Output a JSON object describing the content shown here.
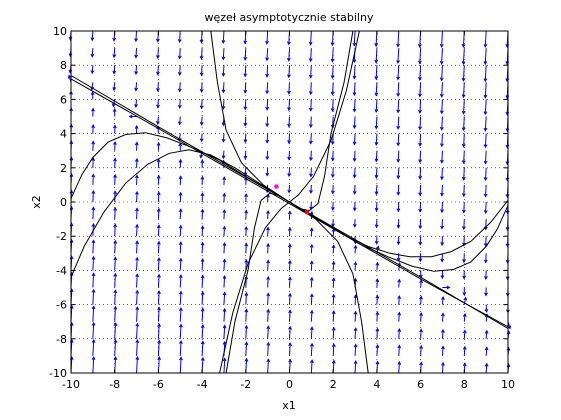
{
  "chart_data": {
    "type": "vector-field",
    "title": "węzeł asymptotycznie stabilny",
    "xlabel": "x1",
    "ylabel": "x2",
    "xlim": [
      -10,
      10
    ],
    "ylim": [
      -10,
      10
    ],
    "xticks": [
      -10,
      -8,
      -6,
      -4,
      -2,
      0,
      2,
      4,
      6,
      8,
      10
    ],
    "yticks": [
      -10,
      -8,
      -6,
      -4,
      -2,
      0,
      2,
      4,
      6,
      8,
      10
    ],
    "grid": "dotted",
    "colors": {
      "field": "#0000ff",
      "trajectory": "#000000",
      "point_magenta": "#ff00ff",
      "point_red": "#ff0000"
    },
    "trajectories": [
      {
        "name": "eigenline-a",
        "points": [
          [
            -10,
            7.4
          ],
          [
            -6,
            4.4
          ],
          [
            -3,
            2.2
          ],
          [
            0,
            0
          ],
          [
            3,
            -2.2
          ],
          [
            6,
            -4.4
          ],
          [
            10,
            -7.4
          ]
        ]
      },
      {
        "name": "eigenline-b",
        "points": [
          [
            -10,
            7.2
          ],
          [
            -6,
            4.3
          ],
          [
            -3,
            2.1
          ],
          [
            0,
            -0.1
          ],
          [
            3,
            -2.3
          ],
          [
            6,
            -4.5
          ],
          [
            10,
            -7.3
          ]
        ]
      },
      {
        "name": "upper-left-arc",
        "points": [
          [
            -10,
            0.2
          ],
          [
            -9.5,
            1.6
          ],
          [
            -9,
            2.6
          ],
          [
            -8.3,
            3.5
          ],
          [
            -7.5,
            3.95
          ],
          [
            -6.6,
            4.05
          ],
          [
            -5.6,
            3.75
          ],
          [
            -4.5,
            3.2
          ],
          [
            -3.2,
            2.45
          ],
          [
            -2,
            1.5
          ],
          [
            -1,
            0.75
          ],
          [
            0,
            0
          ]
        ]
      },
      {
        "name": "upper-left-arc-2",
        "points": [
          [
            -10,
            -4.4
          ],
          [
            -9.4,
            -2.6
          ],
          [
            -8.5,
            -0.6
          ],
          [
            -7.5,
            1.1
          ],
          [
            -6.5,
            2.2
          ],
          [
            -5.5,
            2.85
          ],
          [
            -4.6,
            3.05
          ],
          [
            -3.6,
            2.75
          ],
          [
            -2.5,
            2.0
          ],
          [
            -1.5,
            1.2
          ],
          [
            -0.6,
            0.45
          ],
          [
            0,
            0
          ]
        ]
      },
      {
        "name": "lower-right-arc",
        "points": [
          [
            10,
            -0.2
          ],
          [
            9.5,
            -1.6
          ],
          [
            9,
            -2.6
          ],
          [
            8.3,
            -3.5
          ],
          [
            7.5,
            -3.95
          ],
          [
            6.6,
            -4.05
          ],
          [
            5.6,
            -3.75
          ],
          [
            4.5,
            -3.2
          ],
          [
            3.2,
            -2.45
          ],
          [
            2,
            -1.5
          ],
          [
            1,
            -0.75
          ],
          [
            0,
            0
          ]
        ]
      },
      {
        "name": "lower-right-arc-2",
        "points": [
          [
            10,
            0.1
          ],
          [
            9.2,
            -1.2
          ],
          [
            8.3,
            -2.3
          ],
          [
            7.4,
            -2.9
          ],
          [
            6.5,
            -3.2
          ],
          [
            5.5,
            -3.2
          ],
          [
            4.6,
            -3.0
          ],
          [
            3.6,
            -2.6
          ],
          [
            2.6,
            -2.0
          ],
          [
            1.6,
            -1.25
          ],
          [
            0.8,
            -0.6
          ],
          [
            0,
            0
          ]
        ]
      },
      {
        "name": "top-left-steep",
        "points": [
          [
            -3.6,
            10
          ],
          [
            -3.3,
            7
          ],
          [
            -2.9,
            4.2
          ],
          [
            -2.2,
            2.3
          ],
          [
            -1.2,
            1.0
          ],
          [
            0,
            0
          ]
        ]
      },
      {
        "name": "top-right-steep",
        "points": [
          [
            3.2,
            10
          ],
          [
            2.6,
            6.5
          ],
          [
            1.9,
            3.6
          ],
          [
            1.1,
            1.5
          ],
          [
            0.4,
            0.4
          ],
          [
            0,
            0
          ]
        ]
      },
      {
        "name": "bottom-left-steep",
        "points": [
          [
            -3.2,
            -10
          ],
          [
            -2.6,
            -6.5
          ],
          [
            -1.9,
            -3.6
          ],
          [
            -1.1,
            -1.5
          ],
          [
            -0.4,
            -0.4
          ],
          [
            0,
            0
          ]
        ]
      },
      {
        "name": "bottom-right-steep",
        "points": [
          [
            3.6,
            -10
          ],
          [
            3.3,
            -7
          ],
          [
            2.9,
            -4.2
          ],
          [
            2.2,
            -2.3
          ],
          [
            1.2,
            -1.0
          ],
          [
            0,
            0
          ]
        ]
      },
      {
        "name": "left-hook",
        "points": [
          [
            -2.9,
            -10
          ],
          [
            -2.5,
            -7
          ],
          [
            -1.9,
            -4
          ],
          [
            -1.6,
            -1.5
          ],
          [
            -1.3,
            0.1
          ],
          [
            -0.9,
            0.5
          ],
          [
            -0.5,
            0.4
          ],
          [
            0,
            0
          ]
        ]
      },
      {
        "name": "right-hook",
        "points": [
          [
            2.9,
            10
          ],
          [
            2.5,
            7
          ],
          [
            1.9,
            4
          ],
          [
            1.6,
            1.5
          ],
          [
            1.3,
            -0.1
          ],
          [
            0.9,
            -0.5
          ],
          [
            0.5,
            -0.4
          ],
          [
            0,
            0
          ]
        ]
      }
    ],
    "points": [
      {
        "name": "initial-point",
        "x": -0.6,
        "y": 0.9,
        "color": "#ff00ff"
      },
      {
        "name": "equilibrium-point",
        "x": 0.8,
        "y": -0.6,
        "color": "#ff0000"
      }
    ]
  }
}
